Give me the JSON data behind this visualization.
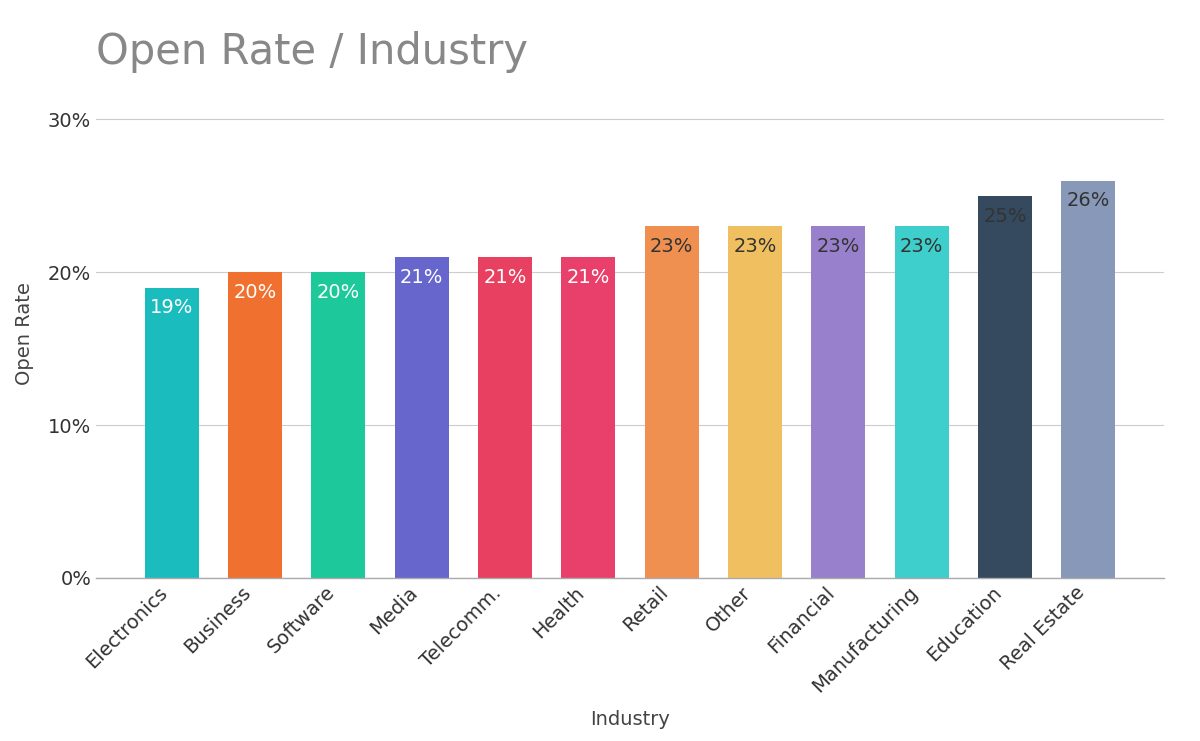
{
  "title": "Open Rate / Industry",
  "xlabel": "Industry",
  "ylabel": "Open Rate",
  "categories": [
    "Electronics",
    "Business",
    "Software",
    "Media",
    "Telecomm.",
    "Health",
    "Retail",
    "Other",
    "Financial",
    "Manufacturing",
    "Education",
    "Real Estate"
  ],
  "values": [
    19,
    20,
    20,
    21,
    21,
    21,
    23,
    23,
    23,
    23,
    25,
    26
  ],
  "bar_colors": [
    "#1BBCBE",
    "#F07030",
    "#1DC89A",
    "#6666CC",
    "#E84060",
    "#E8406A",
    "#F09050",
    "#F0C060",
    "#9980CC",
    "#3ECFCC",
    "#354A5E",
    "#8898B8"
  ],
  "ylim": [
    0,
    32
  ],
  "yticks": [
    0,
    10,
    20,
    30
  ],
  "ytick_labels": [
    "0%",
    "10%",
    "20%",
    "30%"
  ],
  "background_color": "#FFFFFF",
  "grid_color": "#CCCCCC",
  "title_color": "#888888",
  "label_color_white": "#FFFFFF",
  "label_color_dark": "#333333",
  "title_fontsize": 30,
  "axis_label_fontsize": 14,
  "tick_fontsize": 14,
  "bar_label_fontsize": 14,
  "bar_width": 0.65
}
